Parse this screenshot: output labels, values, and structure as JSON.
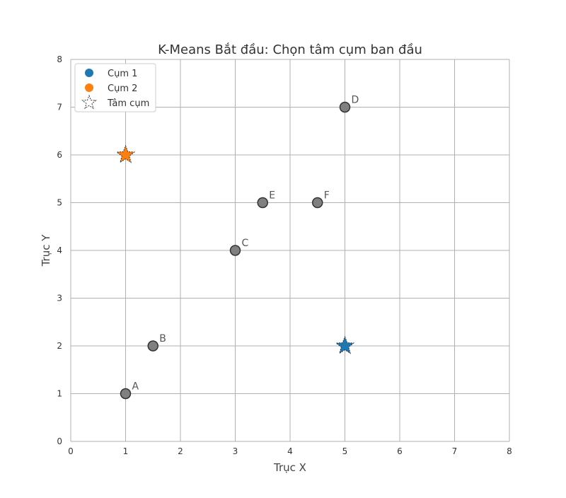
{
  "chart_data": {
    "type": "scatter",
    "title": "K-Means  Bắt đầu: Chọn tâm cụm ban đầu",
    "xlabel": "Trục X",
    "ylabel": "Trục Y",
    "xlim": [
      0,
      8
    ],
    "ylim": [
      0,
      8
    ],
    "xticks": [
      "0",
      "1",
      "2",
      "3",
      "4",
      "5",
      "6",
      "7",
      "8"
    ],
    "yticks": [
      "0",
      "1",
      "2",
      "3",
      "4",
      "5",
      "6",
      "7",
      "8"
    ],
    "grid": true,
    "legend_position": "top-left",
    "points": [
      {
        "label": "A",
        "x": 1,
        "y": 1
      },
      {
        "label": "B",
        "x": 1.5,
        "y": 2
      },
      {
        "label": "C",
        "x": 3,
        "y": 4
      },
      {
        "label": "D",
        "x": 5,
        "y": 7
      },
      {
        "label": "E",
        "x": 3.5,
        "y": 5
      },
      {
        "label": "F",
        "x": 4.5,
        "y": 5
      }
    ],
    "point_color": "#808080",
    "centroids": [
      {
        "cluster": "Cụm 1",
        "x": 5,
        "y": 2,
        "color": "#1f77b4"
      },
      {
        "cluster": "Cụm 2",
        "x": 1,
        "y": 6,
        "color": "#ff7f0e"
      }
    ],
    "legend": [
      {
        "label": "Cụm 1",
        "marker": "circle",
        "color": "#1f77b4"
      },
      {
        "label": "Cụm 2",
        "marker": "circle",
        "color": "#ff7f0e"
      },
      {
        "label": "Tâm cụm",
        "marker": "star",
        "color": "#ffffff"
      }
    ]
  }
}
